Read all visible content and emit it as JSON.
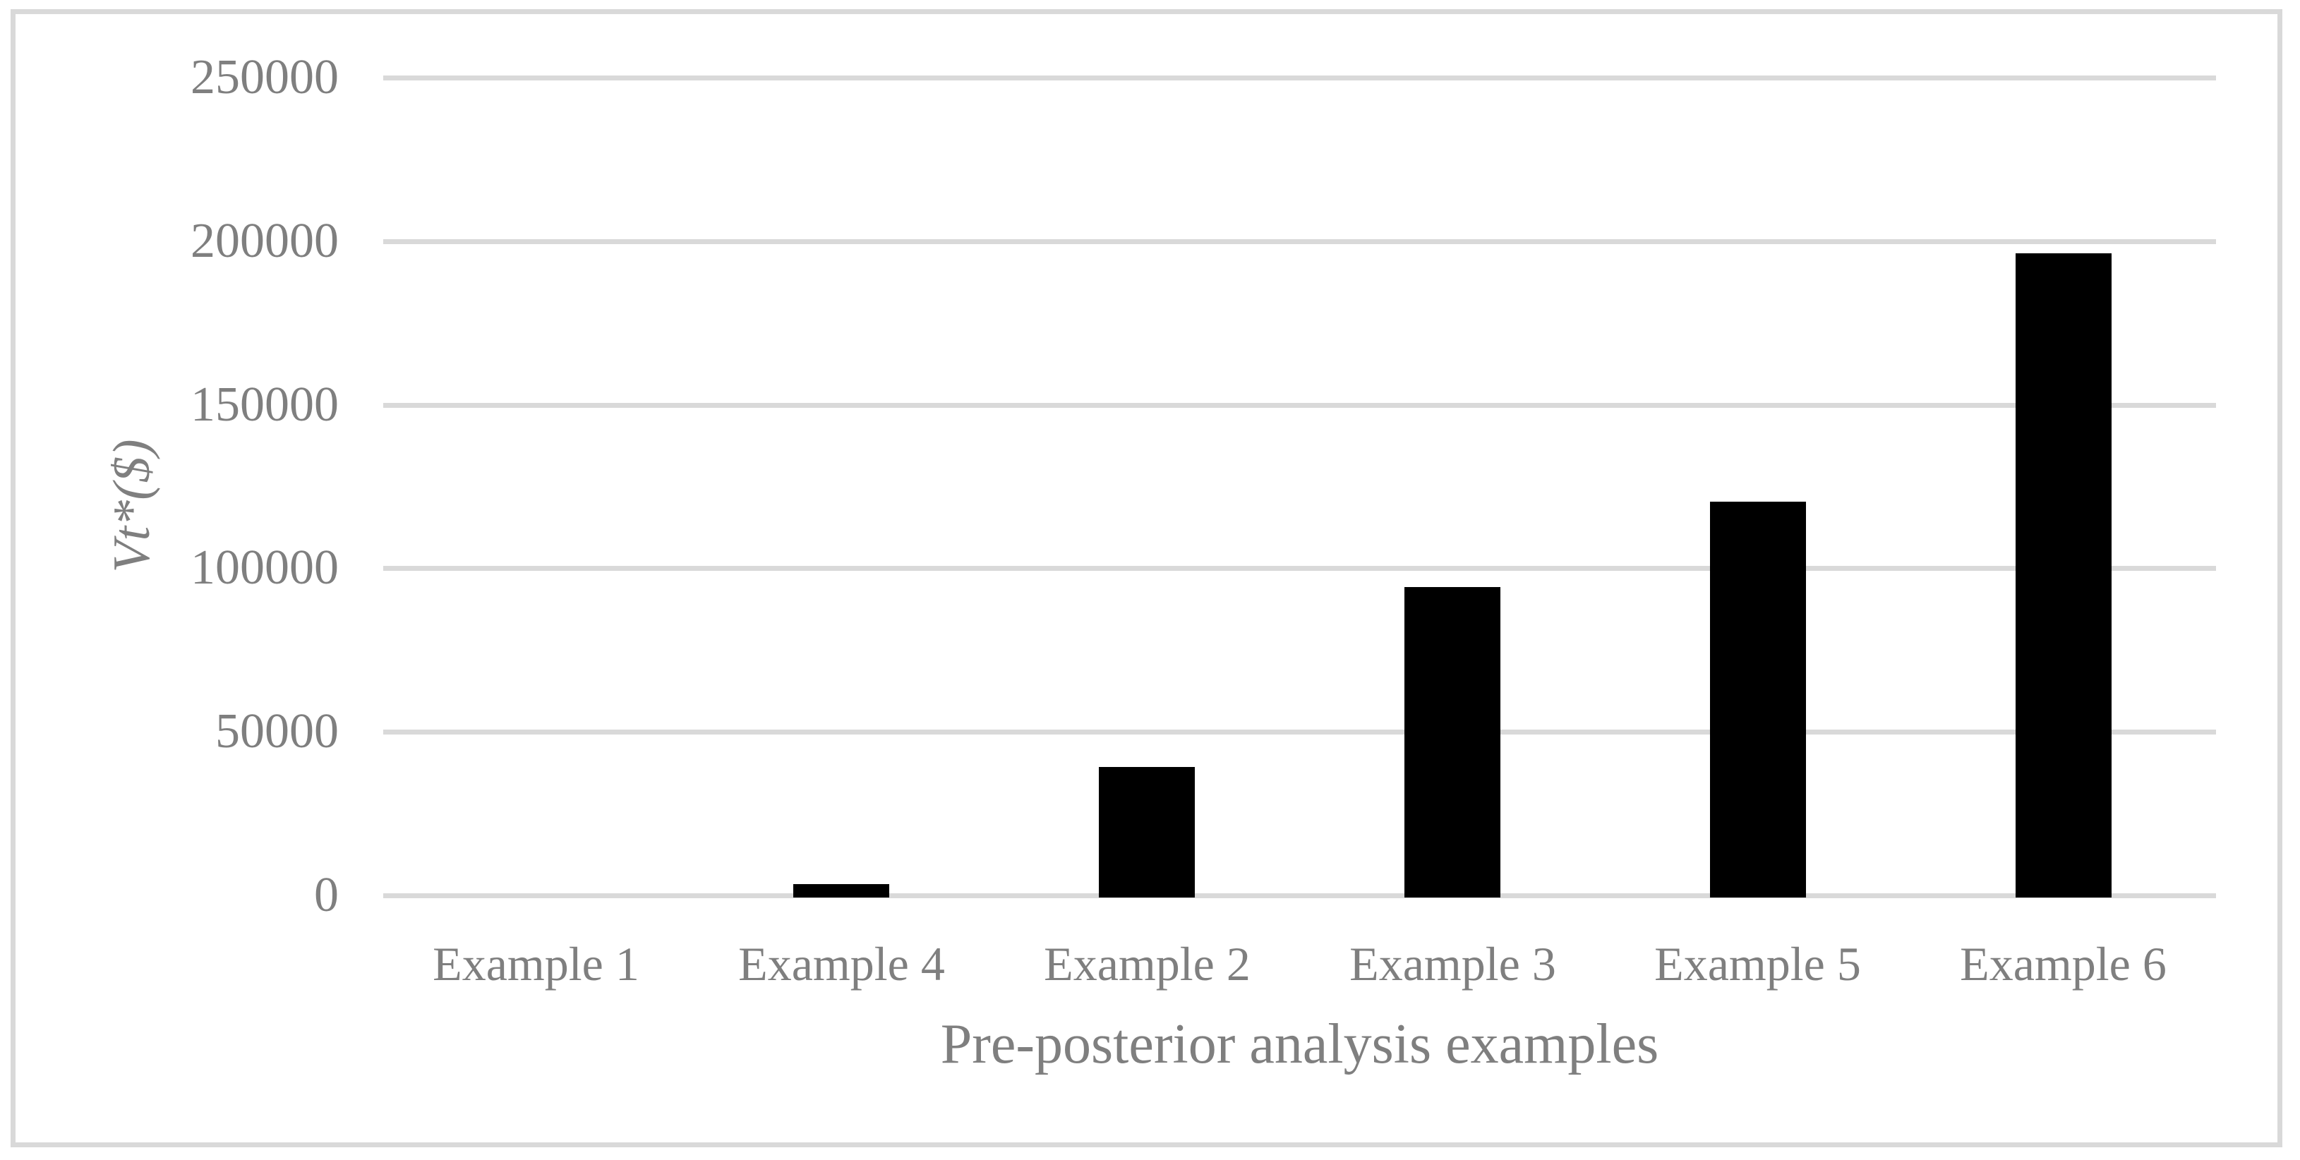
{
  "chart_data": {
    "type": "bar",
    "title": "",
    "categories": [
      "Example 1",
      "Example 4",
      "Example 2",
      "Example 3",
      "Example 5",
      "Example 6"
    ],
    "values": [
      0,
      4000,
      40000,
      95000,
      121000,
      197000
    ],
    "series": [
      {
        "name": "Vt*",
        "values": [
          0,
          4000,
          40000,
          95000,
          121000,
          197000
        ]
      }
    ],
    "xlabel": "Pre-posterior analysis examples",
    "ylabel": "Vt*($)",
    "ylim": [
      0,
      250000
    ],
    "yticks": [
      0,
      50000,
      100000,
      150000,
      200000,
      250000
    ],
    "ytick_labels": [
      "0",
      "50000",
      "100000",
      "150000",
      "200000",
      "250000"
    ],
    "grid": "horizontal",
    "legend": "none",
    "colors": {
      "bar": "#000000",
      "gridline": "#d9d9d9",
      "border": "#d9d9d9",
      "text": "#7f7f7f",
      "background": "#ffffff"
    }
  }
}
